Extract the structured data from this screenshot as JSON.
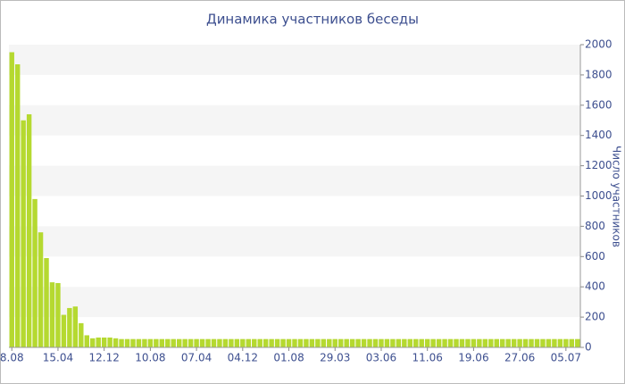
{
  "chart_data": {
    "type": "bar",
    "title": "Динамика участников беседы",
    "y_label": "Число участников",
    "categories": [
      "8.08",
      null,
      null,
      null,
      null,
      null,
      null,
      null,
      "15.04",
      null,
      null,
      null,
      null,
      null,
      null,
      null,
      "12.12",
      null,
      null,
      null,
      null,
      null,
      null,
      null,
      "10.08",
      null,
      null,
      null,
      null,
      null,
      null,
      null,
      "07.04",
      null,
      null,
      null,
      null,
      null,
      null,
      null,
      "04.12",
      null,
      null,
      null,
      null,
      null,
      null,
      null,
      "01.08",
      null,
      null,
      null,
      null,
      null,
      null,
      null,
      "29.03",
      null,
      null,
      null,
      null,
      null,
      null,
      null,
      "03.06",
      null,
      null,
      null,
      null,
      null,
      null,
      null,
      "11.06",
      null,
      null,
      null,
      null,
      null,
      null,
      null,
      "19.06",
      null,
      null,
      null,
      null,
      null,
      null,
      null,
      "27.06",
      null,
      null,
      null,
      null,
      null,
      null,
      null,
      "05.07",
      null,
      null
    ],
    "values": [
      1950,
      1870,
      1500,
      1540,
      980,
      760,
      590,
      430,
      425,
      215,
      260,
      270,
      160,
      80,
      60,
      65,
      65,
      65,
      60,
      55,
      55,
      55,
      55,
      55,
      55,
      55,
      55,
      55,
      55,
      55,
      55,
      55,
      55,
      55,
      55,
      55,
      55,
      55,
      55,
      55,
      55,
      55,
      55,
      55,
      55,
      55,
      55,
      55,
      55,
      55,
      55,
      55,
      55,
      55,
      55,
      55,
      55,
      55,
      55,
      55,
      55,
      55,
      55,
      55,
      55,
      55,
      55,
      55,
      55,
      55,
      55,
      55,
      55,
      55,
      55,
      55,
      55,
      55,
      55,
      55,
      55,
      55,
      55,
      55,
      55,
      55,
      55,
      55,
      55,
      55,
      55,
      55,
      55,
      55,
      55,
      55,
      55,
      55,
      55
    ],
    "color": "#b5d930",
    "ylim": [
      0,
      2000
    ],
    "yticks": [
      0,
      200,
      400,
      600,
      800,
      1000,
      1200,
      1400,
      1600,
      1800,
      2000
    ],
    "grid_bands": true,
    "y_axis_side": "right"
  }
}
